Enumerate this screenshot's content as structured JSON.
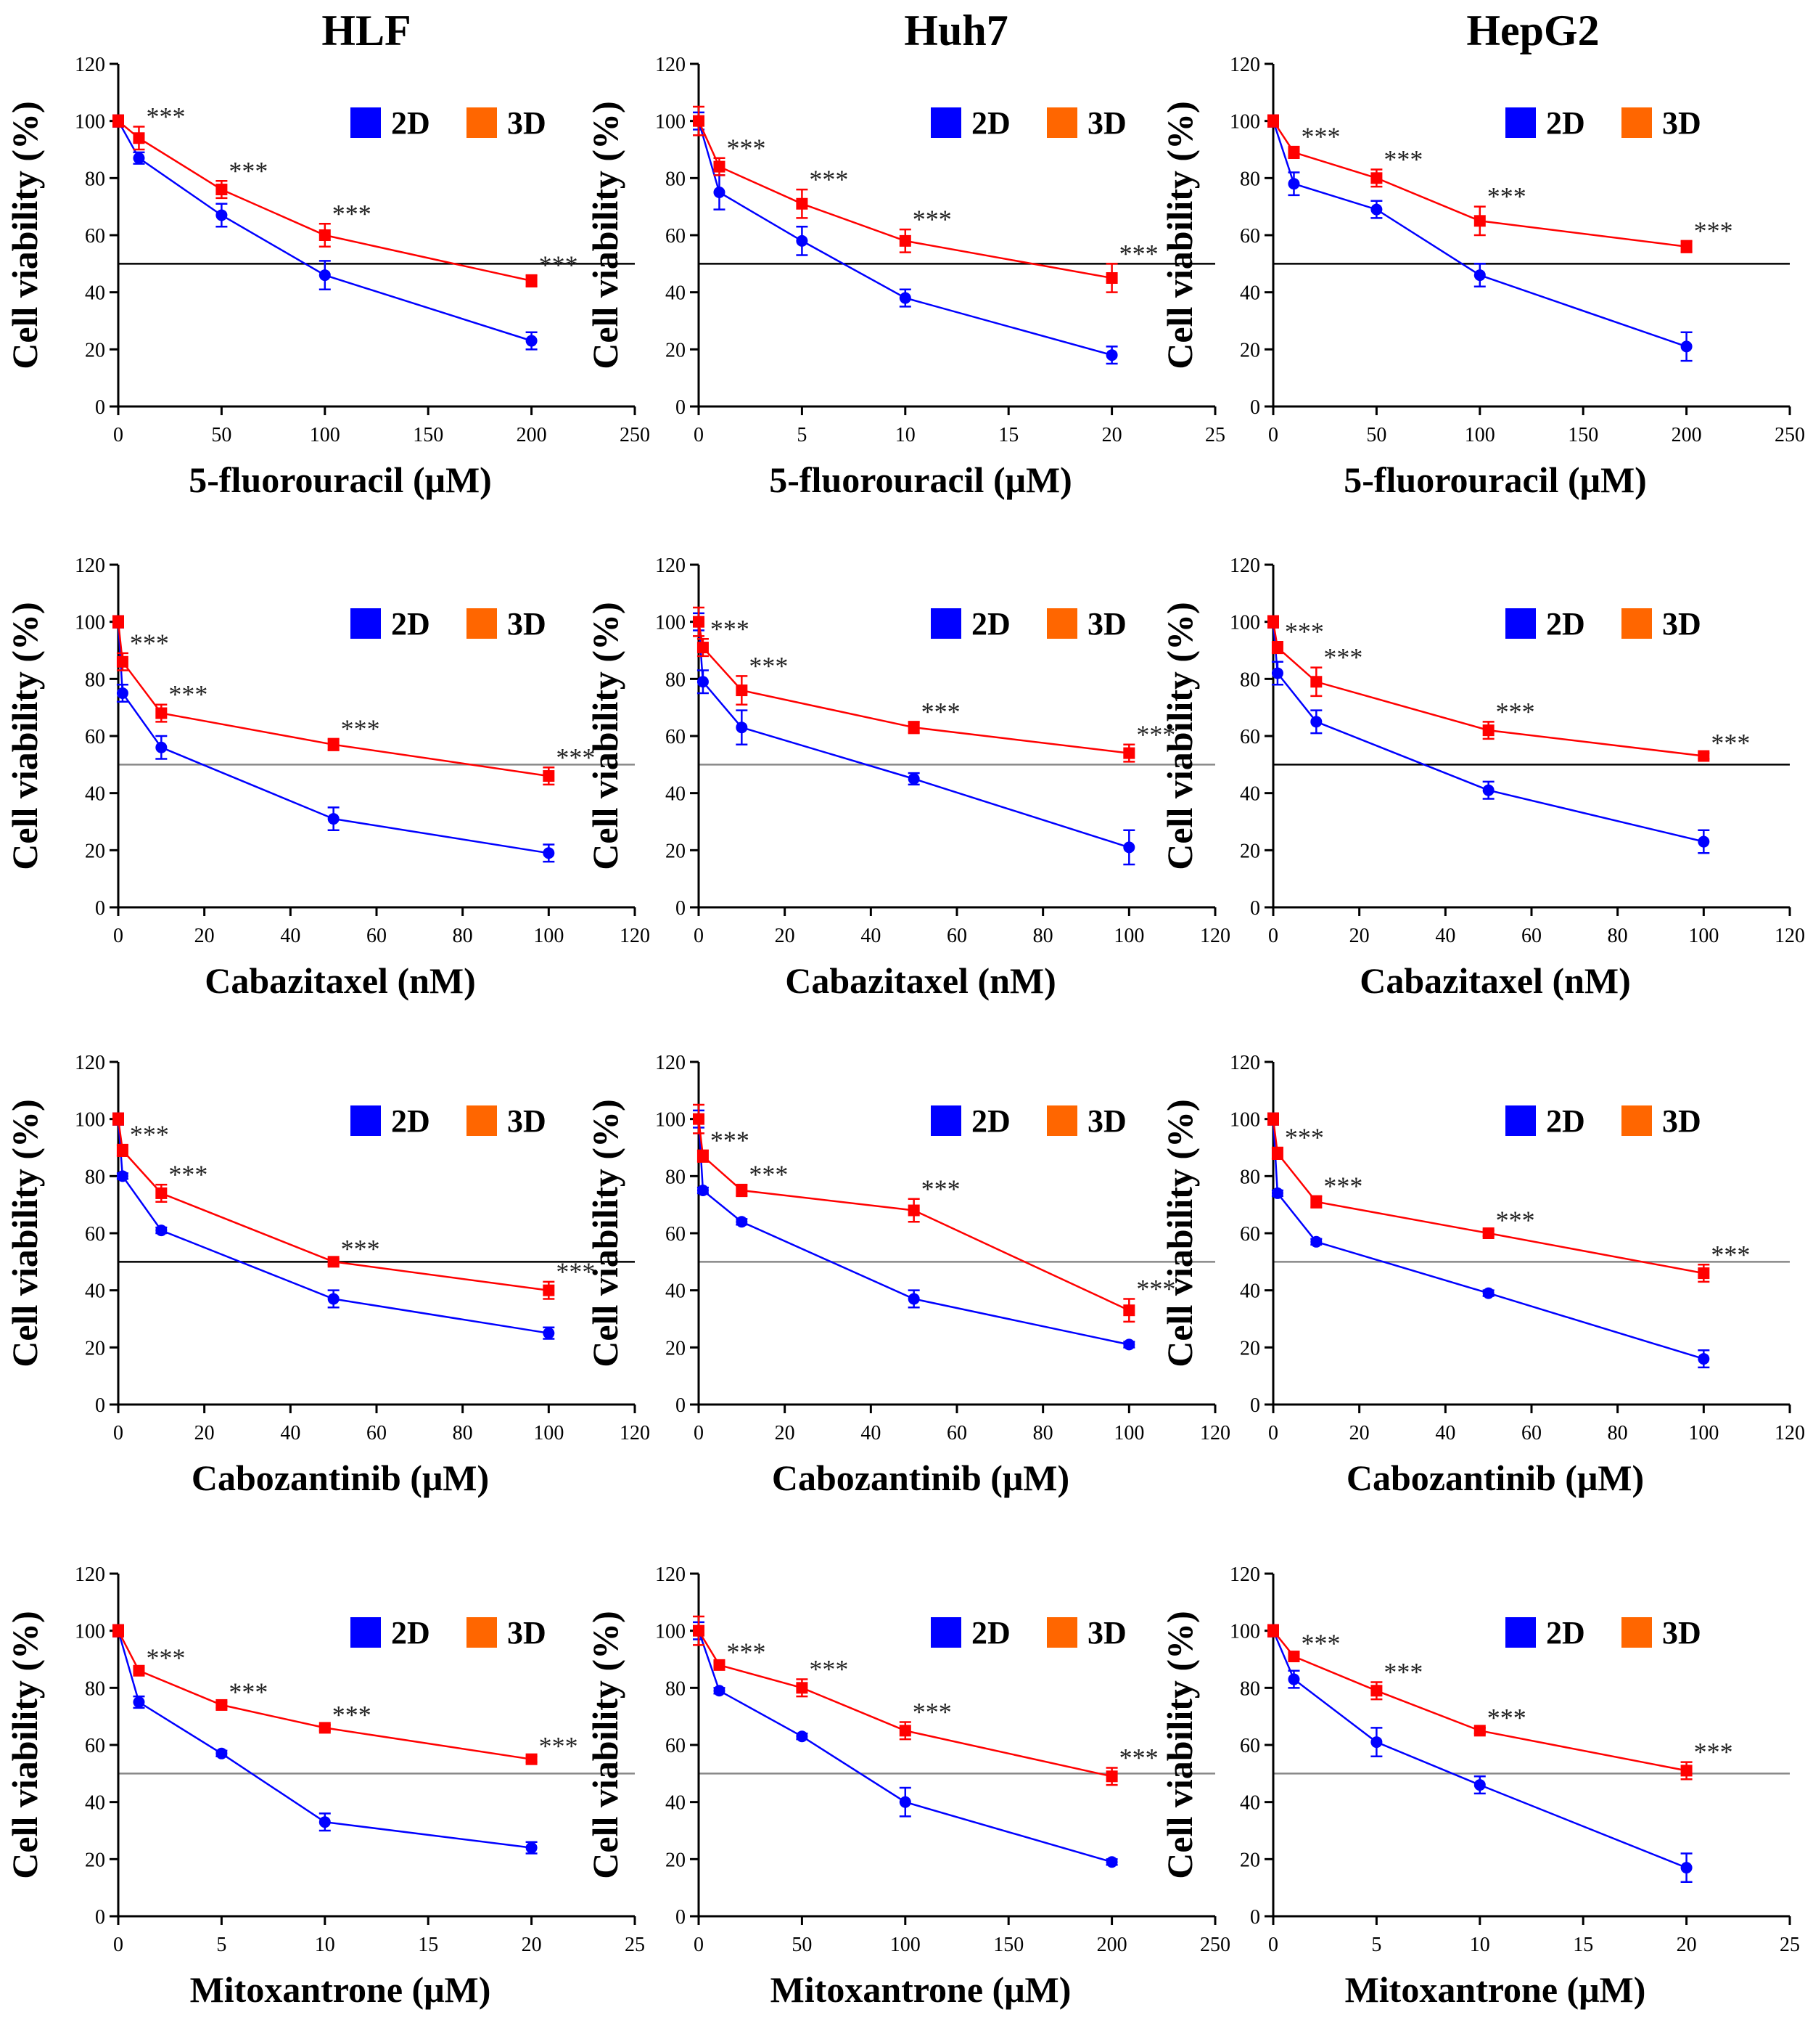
{
  "colors": {
    "series_2d": "#0000ff",
    "series_3d": "#ff0000",
    "legend_3d": "#ff6600",
    "ref_line_dark": "#000000",
    "ref_line_gray": "#888888"
  },
  "figure": {
    "column_titles": [
      "HLF",
      "Huh7",
      "HepG2"
    ],
    "legend": {
      "label_2d": "2D",
      "label_3d": "3D"
    },
    "significance_marker": "***"
  },
  "chart_data": [
    {
      "type": "line",
      "title": "HLF",
      "xlabel": "5-fluorouracil (μM)",
      "ylabel": "Cell viability (%)",
      "xlim": [
        0,
        250
      ],
      "xticks": [
        0,
        50,
        100,
        150,
        200,
        250
      ],
      "ylim": [
        0,
        120
      ],
      "yticks": [
        0,
        20,
        40,
        60,
        80,
        100,
        120
      ],
      "ref_line": 50,
      "ref_color": "dark",
      "series": [
        {
          "name": "2D",
          "x": [
            0,
            10,
            50,
            100,
            200
          ],
          "values": [
            100,
            87,
            67,
            46,
            23
          ],
          "err": [
            2,
            2,
            4,
            5,
            3
          ]
        },
        {
          "name": "3D",
          "x": [
            0,
            10,
            50,
            100,
            200
          ],
          "values": [
            100,
            94,
            76,
            60,
            44
          ],
          "err": [
            2,
            4,
            3,
            4,
            2
          ]
        }
      ],
      "sig_x": [
        10,
        50,
        100,
        200
      ]
    },
    {
      "type": "line",
      "title": "Huh7",
      "xlabel": "5-fluorouracil (μM)",
      "ylabel": "Cell viability (%)",
      "xlim": [
        0,
        25
      ],
      "xticks": [
        0,
        5,
        10,
        15,
        20,
        25
      ],
      "ylim": [
        0,
        120
      ],
      "yticks": [
        0,
        20,
        40,
        60,
        80,
        100,
        120
      ],
      "ref_line": 50,
      "ref_color": "dark",
      "series": [
        {
          "name": "2D",
          "x": [
            0,
            1,
            5,
            10,
            20
          ],
          "values": [
            100,
            75,
            58,
            38,
            18
          ],
          "err": [
            3,
            6,
            5,
            3,
            3
          ]
        },
        {
          "name": "3D",
          "x": [
            0,
            1,
            5,
            10,
            20
          ],
          "values": [
            100,
            84,
            71,
            58,
            45
          ],
          "err": [
            5,
            3,
            5,
            4,
            5
          ]
        }
      ],
      "sig_x": [
        1,
        5,
        10,
        20
      ]
    },
    {
      "type": "line",
      "title": "HepG2",
      "xlabel": "5-fluorouracil (μM)",
      "ylabel": "Cell viability (%)",
      "xlim": [
        0,
        250
      ],
      "xticks": [
        0,
        50,
        100,
        150,
        200,
        250
      ],
      "ylim": [
        0,
        120
      ],
      "yticks": [
        0,
        20,
        40,
        60,
        80,
        100,
        120
      ],
      "ref_line": 50,
      "ref_color": "dark",
      "series": [
        {
          "name": "2D",
          "x": [
            0,
            10,
            50,
            100,
            200
          ],
          "values": [
            100,
            78,
            69,
            46,
            21
          ],
          "err": [
            2,
            4,
            3,
            4,
            5
          ]
        },
        {
          "name": "3D",
          "x": [
            0,
            10,
            50,
            100,
            200
          ],
          "values": [
            100,
            89,
            80,
            65,
            56
          ],
          "err": [
            2,
            2,
            3,
            5,
            2
          ]
        }
      ],
      "sig_x": [
        10,
        50,
        100,
        200
      ]
    },
    {
      "type": "line",
      "title": "",
      "xlabel": "Cabazitaxel (nM)",
      "ylabel": "Cell viability (%)",
      "xlim": [
        0,
        120
      ],
      "xticks": [
        0,
        20,
        40,
        60,
        80,
        100,
        120
      ],
      "ylim": [
        0,
        120
      ],
      "yticks": [
        0,
        20,
        40,
        60,
        80,
        100,
        120
      ],
      "ref_line": 50,
      "ref_color": "gray",
      "series": [
        {
          "name": "2D",
          "x": [
            0,
            1,
            10,
            50,
            100
          ],
          "values": [
            100,
            75,
            56,
            31,
            19
          ],
          "err": [
            2,
            3,
            4,
            4,
            3
          ]
        },
        {
          "name": "3D",
          "x": [
            0,
            1,
            10,
            50,
            100
          ],
          "values": [
            100,
            86,
            68,
            57,
            46
          ],
          "err": [
            2,
            3,
            3,
            2,
            3
          ]
        }
      ],
      "sig_x": [
        1,
        10,
        50,
        100
      ]
    },
    {
      "type": "line",
      "title": "",
      "xlabel": "Cabazitaxel (nM)",
      "ylabel": "Cell viability (%)",
      "xlim": [
        0,
        120
      ],
      "xticks": [
        0,
        20,
        40,
        60,
        80,
        100,
        120
      ],
      "ylim": [
        0,
        120
      ],
      "yticks": [
        0,
        20,
        40,
        60,
        80,
        100,
        120
      ],
      "ref_line": 50,
      "ref_color": "gray",
      "series": [
        {
          "name": "2D",
          "x": [
            0,
            1,
            10,
            50,
            100
          ],
          "values": [
            100,
            79,
            63,
            45,
            21
          ],
          "err": [
            3,
            4,
            6,
            2,
            6
          ]
        },
        {
          "name": "3D",
          "x": [
            0,
            1,
            10,
            50,
            100
          ],
          "values": [
            100,
            91,
            76,
            63,
            54
          ],
          "err": [
            5,
            3,
            5,
            2,
            3
          ]
        }
      ],
      "sig_x": [
        1,
        10,
        50,
        100
      ]
    },
    {
      "type": "line",
      "title": "",
      "xlabel": "Cabazitaxel (nM)",
      "ylabel": "Cell viability (%)",
      "xlim": [
        0,
        120
      ],
      "xticks": [
        0,
        20,
        40,
        60,
        80,
        100,
        120
      ],
      "ylim": [
        0,
        120
      ],
      "yticks": [
        0,
        20,
        40,
        60,
        80,
        100,
        120
      ],
      "ref_line": 50,
      "ref_color": "dark",
      "series": [
        {
          "name": "2D",
          "x": [
            0,
            1,
            10,
            50,
            100
          ],
          "values": [
            100,
            82,
            65,
            41,
            23
          ],
          "err": [
            2,
            4,
            4,
            3,
            4
          ]
        },
        {
          "name": "3D",
          "x": [
            0,
            1,
            10,
            50,
            100
          ],
          "values": [
            100,
            91,
            79,
            62,
            53
          ],
          "err": [
            2,
            2,
            5,
            3,
            1
          ]
        }
      ],
      "sig_x": [
        1,
        10,
        50,
        100
      ]
    },
    {
      "type": "line",
      "title": "",
      "xlabel": "Cabozantinib (μM)",
      "ylabel": "Cell viability (%)",
      "xlim": [
        0,
        120
      ],
      "xticks": [
        0,
        20,
        40,
        60,
        80,
        100,
        120
      ],
      "ylim": [
        0,
        120
      ],
      "yticks": [
        0,
        20,
        40,
        60,
        80,
        100,
        120
      ],
      "ref_line": 50,
      "ref_color": "dark",
      "series": [
        {
          "name": "2D",
          "x": [
            0,
            1,
            10,
            50,
            100
          ],
          "values": [
            100,
            80,
            61,
            37,
            25
          ],
          "err": [
            2,
            1,
            1,
            3,
            2
          ]
        },
        {
          "name": "3D",
          "x": [
            0,
            1,
            10,
            50,
            100
          ],
          "values": [
            100,
            89,
            74,
            50,
            40
          ],
          "err": [
            2,
            2,
            3,
            1,
            3
          ]
        }
      ],
      "sig_x": [
        1,
        10,
        50,
        100
      ]
    },
    {
      "type": "line",
      "title": "",
      "xlabel": "Cabozantinib (μM)",
      "ylabel": "Cell viability (%)",
      "xlim": [
        0,
        120
      ],
      "xticks": [
        0,
        20,
        40,
        60,
        80,
        100,
        120
      ],
      "ylim": [
        0,
        120
      ],
      "yticks": [
        0,
        20,
        40,
        60,
        80,
        100,
        120
      ],
      "ref_line": 50,
      "ref_color": "gray",
      "series": [
        {
          "name": "2D",
          "x": [
            0,
            1,
            10,
            50,
            100
          ],
          "values": [
            100,
            75,
            64,
            37,
            21
          ],
          "err": [
            3,
            1,
            1,
            3,
            1
          ]
        },
        {
          "name": "3D",
          "x": [
            0,
            1,
            10,
            50,
            100
          ],
          "values": [
            100,
            87,
            75,
            68,
            33
          ],
          "err": [
            5,
            2,
            2,
            4,
            4
          ]
        }
      ],
      "sig_x": [
        1,
        10,
        50,
        100
      ]
    },
    {
      "type": "line",
      "title": "",
      "xlabel": "Cabozantinib (μM)",
      "ylabel": "Cell viability (%)",
      "xlim": [
        0,
        120
      ],
      "xticks": [
        0,
        20,
        40,
        60,
        80,
        100,
        120
      ],
      "ylim": [
        0,
        120
      ],
      "yticks": [
        0,
        20,
        40,
        60,
        80,
        100,
        120
      ],
      "ref_line": 50,
      "ref_color": "gray",
      "series": [
        {
          "name": "2D",
          "x": [
            0,
            1,
            10,
            50,
            100
          ],
          "values": [
            100,
            74,
            57,
            39,
            16
          ],
          "err": [
            2,
            1,
            1,
            1,
            3
          ]
        },
        {
          "name": "3D",
          "x": [
            0,
            1,
            10,
            50,
            100
          ],
          "values": [
            100,
            88,
            71,
            60,
            46
          ],
          "err": [
            2,
            2,
            2,
            1,
            3
          ]
        }
      ],
      "sig_x": [
        1,
        10,
        50,
        100
      ]
    },
    {
      "type": "line",
      "title": "",
      "xlabel": "Mitoxantrone (μM)",
      "ylabel": "Cell viability (%)",
      "xlim": [
        0,
        25
      ],
      "xticks": [
        0,
        5,
        10,
        15,
        20,
        25
      ],
      "ylim": [
        0,
        120
      ],
      "yticks": [
        0,
        20,
        40,
        60,
        80,
        100,
        120
      ],
      "ref_line": 50,
      "ref_color": "gray",
      "series": [
        {
          "name": "2D",
          "x": [
            0,
            1,
            5,
            10,
            20
          ],
          "values": [
            100,
            75,
            57,
            33,
            24
          ],
          "err": [
            2,
            2,
            1,
            3,
            2
          ]
        },
        {
          "name": "3D",
          "x": [
            0,
            1,
            5,
            10,
            20
          ],
          "values": [
            100,
            86,
            74,
            66,
            55
          ],
          "err": [
            2,
            1,
            1,
            1,
            1
          ]
        }
      ],
      "sig_x": [
        1,
        5,
        10,
        20
      ]
    },
    {
      "type": "line",
      "title": "",
      "xlabel": "Mitoxantrone (μM)",
      "ylabel": "Cell viability (%)",
      "xlim": [
        0,
        250
      ],
      "xticks": [
        0,
        50,
        100,
        150,
        200,
        250
      ],
      "ylim": [
        0,
        120
      ],
      "yticks": [
        0,
        20,
        40,
        60,
        80,
        100,
        120
      ],
      "ref_line": 50,
      "ref_color": "gray",
      "series": [
        {
          "name": "2D",
          "x": [
            0,
            10,
            50,
            100,
            200
          ],
          "values": [
            100,
            79,
            63,
            40,
            19
          ],
          "err": [
            3,
            1,
            1,
            5,
            1
          ]
        },
        {
          "name": "3D",
          "x": [
            0,
            10,
            50,
            100,
            200
          ],
          "values": [
            100,
            88,
            80,
            65,
            49
          ],
          "err": [
            5,
            1,
            3,
            3,
            3
          ]
        }
      ],
      "sig_x": [
        10,
        50,
        100,
        200
      ]
    },
    {
      "type": "line",
      "title": "",
      "xlabel": "Mitoxantrone (μM)",
      "ylabel": "Cell viability (%)",
      "xlim": [
        0,
        25
      ],
      "xticks": [
        0,
        5,
        10,
        15,
        20,
        25
      ],
      "ylim": [
        0,
        120
      ],
      "yticks": [
        0,
        20,
        40,
        60,
        80,
        100,
        120
      ],
      "ref_line": 50,
      "ref_color": "gray",
      "series": [
        {
          "name": "2D",
          "x": [
            0,
            1,
            5,
            10,
            20
          ],
          "values": [
            100,
            83,
            61,
            46,
            17
          ],
          "err": [
            2,
            3,
            5,
            3,
            5
          ]
        },
        {
          "name": "3D",
          "x": [
            0,
            1,
            5,
            10,
            20
          ],
          "values": [
            100,
            91,
            79,
            65,
            51
          ],
          "err": [
            2,
            1,
            3,
            1,
            3
          ]
        }
      ],
      "sig_x": [
        1,
        5,
        10,
        20
      ]
    }
  ]
}
